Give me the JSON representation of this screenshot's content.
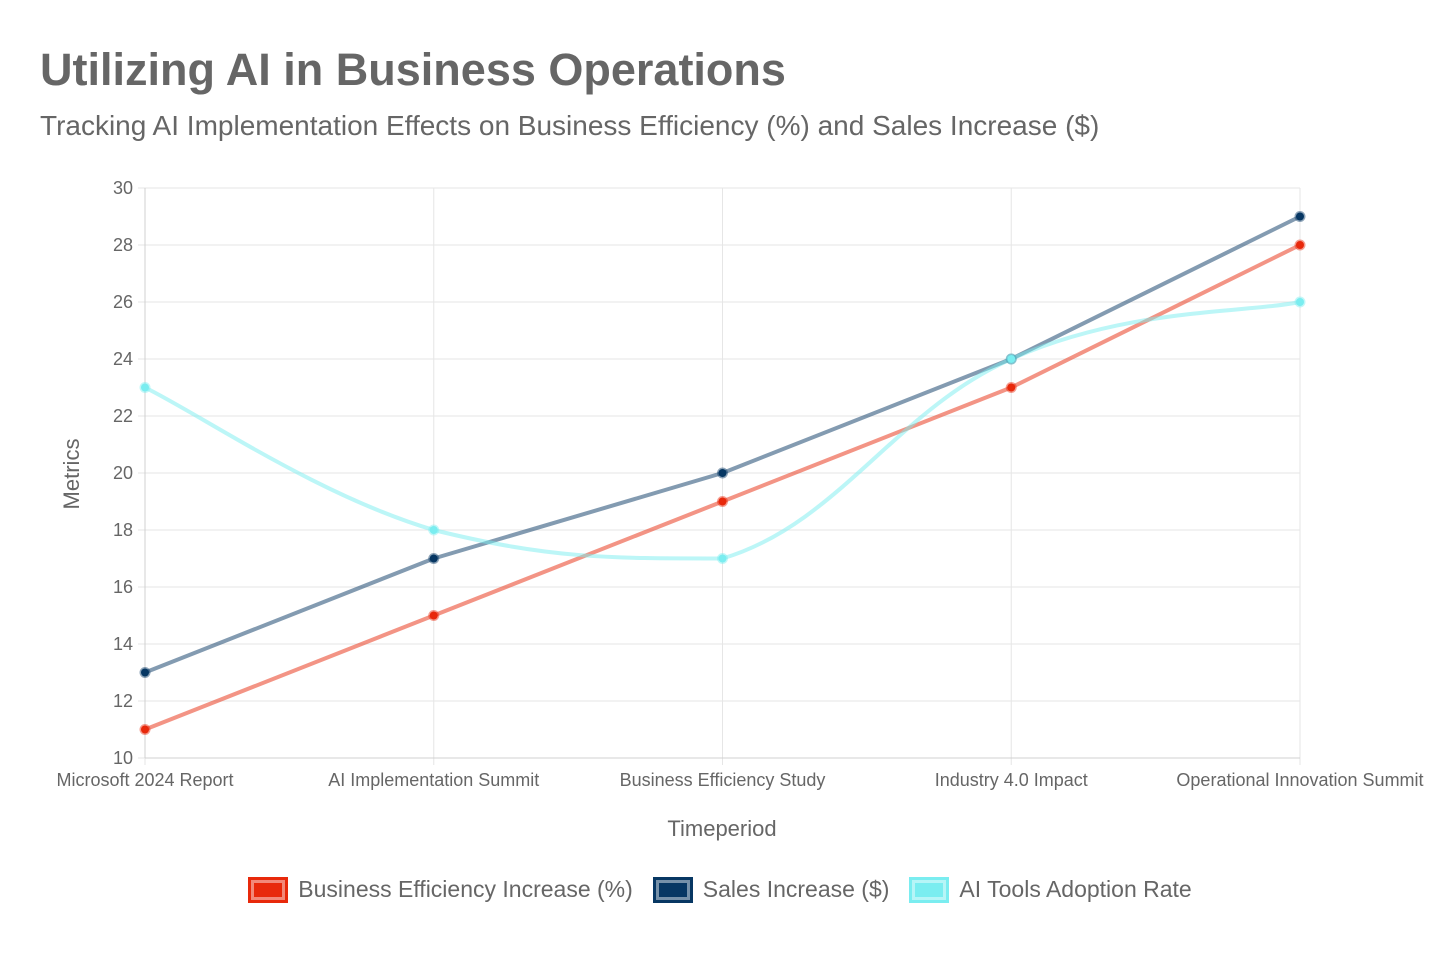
{
  "title": "Utilizing AI in Business Operations",
  "subtitle": "Tracking AI Implementation Effects on Business Efficiency (%) and Sales Increase ($)",
  "chart_data": {
    "type": "line",
    "title": "Utilizing AI in Business Operations",
    "subtitle": "Tracking AI Implementation Effects on Business Efficiency (%) and Sales Increase ($)",
    "xlabel": "Timeperiod",
    "ylabel": "Metrics",
    "categories": [
      "Microsoft 2024 Report",
      "AI Implementation Summit",
      "Business Efficiency Study",
      "Industry 4.0 Impact",
      "Operational Innovation Summit"
    ],
    "ylim": [
      10,
      30
    ],
    "yticks": [
      10,
      12,
      14,
      16,
      18,
      20,
      22,
      24,
      26,
      28,
      30
    ],
    "grid": true,
    "legend_position": "bottom",
    "series": [
      {
        "name": "Business Efficiency Increase (%)",
        "values": [
          11,
          15,
          19,
          23,
          28
        ],
        "color": "#E8290B",
        "line_opacity": 0.5,
        "curve": "linear"
      },
      {
        "name": "Sales Increase ($)",
        "values": [
          13,
          17,
          20,
          24,
          29
        ],
        "color": "#073763",
        "line_opacity": 0.5,
        "curve": "linear"
      },
      {
        "name": "AI Tools Adoption Rate",
        "values": [
          23,
          18,
          17,
          24,
          26
        ],
        "color": "#7AEDF0",
        "line_opacity": 0.5,
        "curve": "smooth"
      }
    ]
  }
}
